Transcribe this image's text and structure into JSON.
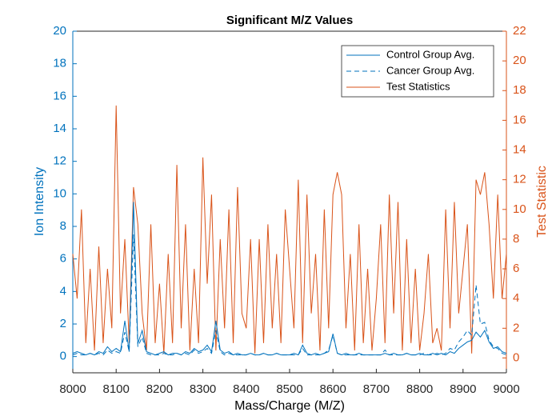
{
  "chart_data": {
    "type": "line",
    "title": "Significant M/Z Values",
    "xlabel": "Mass/Charge (M/Z)",
    "ylabel": "Ion Intensity",
    "y2label": "Test Statistic",
    "x": [
      8000,
      8010,
      8020,
      8030,
      8040,
      8050,
      8060,
      8070,
      8080,
      8090,
      8100,
      8110,
      8120,
      8130,
      8140,
      8150,
      8160,
      8170,
      8180,
      8190,
      8200,
      8210,
      8220,
      8230,
      8240,
      8250,
      8260,
      8270,
      8280,
      8290,
      8300,
      8310,
      8320,
      8330,
      8340,
      8350,
      8360,
      8370,
      8380,
      8390,
      8400,
      8410,
      8420,
      8430,
      8440,
      8450,
      8460,
      8470,
      8480,
      8490,
      8500,
      8510,
      8520,
      8530,
      8540,
      8550,
      8560,
      8570,
      8580,
      8590,
      8600,
      8610,
      8620,
      8630,
      8640,
      8650,
      8660,
      8670,
      8680,
      8690,
      8700,
      8710,
      8720,
      8730,
      8740,
      8750,
      8760,
      8770,
      8780,
      8790,
      8800,
      8810,
      8820,
      8830,
      8840,
      8850,
      8860,
      8870,
      8880,
      8890,
      8900,
      8910,
      8920,
      8930,
      8940,
      8950,
      8960,
      8970,
      8980,
      8990,
      9000
    ],
    "series": [
      {
        "name": "Control Group Avg.",
        "color": "#0072bd",
        "dash": "solid",
        "values": [
          0.2,
          0.3,
          0.2,
          0.1,
          0.2,
          0.1,
          0.3,
          0.2,
          0.6,
          0.3,
          0.5,
          0.3,
          2.2,
          0.3,
          9.5,
          0.8,
          1.6,
          0.3,
          0.2,
          0.1,
          0.2,
          0.3,
          0.1,
          0.2,
          0.2,
          0.1,
          0.3,
          0.2,
          0.5,
          0.3,
          0.4,
          0.7,
          0.3,
          2.2,
          0.4,
          0.2,
          0.3,
          0.1,
          0.2,
          0.1,
          0.1,
          0.2,
          0.1,
          0.1,
          0.2,
          0.1,
          0.1,
          0.2,
          0.1,
          0.1,
          0.1,
          0.2,
          0.1,
          0.7,
          0.2,
          0.1,
          0.2,
          0.1,
          0.2,
          0.3,
          1.4,
          0.2,
          0.1,
          0.2,
          0.1,
          0.1,
          0.2,
          0.1,
          0.1,
          0.1,
          0.1,
          0.1,
          0.2,
          0.1,
          0.2,
          0.1,
          0.1,
          0.2,
          0.1,
          0.1,
          0.2,
          0.1,
          0.1,
          0.2,
          0.1,
          0.2,
          0.1,
          0.3,
          0.2,
          0.5,
          0.7,
          0.9,
          1.0,
          1.5,
          1.2,
          1.6,
          0.9,
          0.5,
          0.6,
          0.3,
          0.2
        ]
      },
      {
        "name": "Cancer Group Avg.",
        "color": "#0072bd",
        "dash": "dashed",
        "values": [
          0.1,
          0.2,
          0.1,
          0.1,
          0.2,
          0.1,
          0.2,
          0.1,
          0.4,
          0.2,
          0.3,
          0.2,
          1.5,
          0.3,
          7.5,
          0.6,
          1.2,
          0.2,
          0.1,
          0.1,
          0.1,
          0.2,
          0.1,
          0.1,
          0.2,
          0.1,
          0.2,
          0.1,
          0.4,
          0.2,
          0.3,
          0.5,
          0.2,
          1.6,
          0.3,
          0.1,
          0.2,
          0.1,
          0.1,
          0.1,
          0.1,
          0.2,
          0.1,
          0.1,
          0.2,
          0.1,
          0.1,
          0.2,
          0.1,
          0.1,
          0.1,
          0.1,
          0.1,
          0.5,
          0.1,
          0.1,
          0.1,
          0.1,
          0.2,
          0.4,
          1.3,
          0.2,
          0.1,
          0.1,
          0.1,
          0.1,
          0.1,
          0.1,
          0.1,
          0.1,
          0.1,
          0.1,
          0.4,
          0.1,
          0.1,
          0.1,
          0.1,
          0.2,
          0.1,
          0.1,
          0.1,
          0.2,
          0.1,
          0.1,
          0.2,
          0.1,
          0.2,
          0.5,
          0.4,
          0.9,
          1.2,
          1.6,
          1.3,
          4.4,
          2.0,
          2.1,
          1.0,
          0.6,
          0.5,
          0.2,
          0.1
        ]
      },
      {
        "name": "Test Statistics",
        "color": "#d95319",
        "dash": "solid",
        "axis": "y2",
        "values": [
          7,
          4,
          10,
          1,
          6,
          0.5,
          7.5,
          1,
          6,
          2,
          17,
          3,
          8,
          1,
          11.5,
          9,
          3,
          0.5,
          9,
          1,
          5,
          0.3,
          7,
          1,
          13,
          2,
          9,
          0.5,
          6,
          1,
          13.5,
          5,
          11,
          0.5,
          8,
          2,
          10,
          1,
          11.5,
          3,
          2,
          8,
          0.3,
          8,
          1,
          9,
          2,
          7,
          1,
          10,
          6,
          2,
          12,
          1,
          11,
          3,
          7,
          0.5,
          10,
          2,
          11,
          12.5,
          11,
          2,
          7,
          0.5,
          9,
          1,
          6,
          0.5,
          4,
          9,
          1,
          11,
          3,
          10.5,
          0.5,
          8,
          1,
          6,
          0.5,
          3,
          7,
          1,
          2,
          0.5,
          10,
          2,
          10.5,
          3,
          6,
          9,
          0.3,
          12,
          11,
          12.5,
          9,
          4,
          11,
          4,
          7
        ]
      }
    ],
    "xlim": [
      8000,
      9000
    ],
    "xticks": [
      8000,
      8100,
      8200,
      8300,
      8400,
      8500,
      8600,
      8700,
      8800,
      8900,
      9000
    ],
    "ylim": [
      -1,
      20
    ],
    "yticks": [
      0,
      2,
      4,
      6,
      8,
      10,
      12,
      14,
      16,
      18,
      20
    ],
    "y2lim": [
      -1,
      22
    ],
    "y2ticks": [
      0,
      2,
      4,
      6,
      8,
      10,
      12,
      14,
      16,
      18,
      20,
      22
    ],
    "y_color": "#0072bd",
    "y2_color": "#d95319",
    "legend": "upper-right"
  }
}
